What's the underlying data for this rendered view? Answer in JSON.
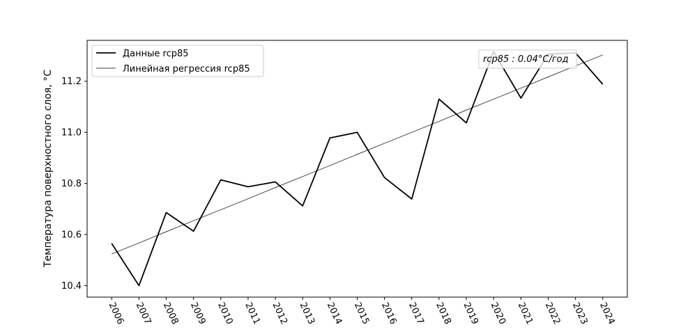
{
  "chart_data": {
    "type": "line",
    "x": [
      2006,
      2007,
      2008,
      2009,
      2010,
      2011,
      2012,
      2013,
      2014,
      2015,
      2016,
      2017,
      2018,
      2019,
      2020,
      2021,
      2022,
      2023,
      2024
    ],
    "x_tick_labels": [
      "2006",
      "2007",
      "2008",
      "2009",
      "2010",
      "2011",
      "2012",
      "2013",
      "2014",
      "2015",
      "2016",
      "2017",
      "2018",
      "2019",
      "2020",
      "2021",
      "2022",
      "2023",
      "2024"
    ],
    "series": [
      {
        "name": "Данные rcp85",
        "values": [
          10.565,
          10.4,
          10.686,
          10.613,
          10.814,
          10.787,
          10.806,
          10.712,
          10.978,
          11.0,
          10.823,
          10.739,
          11.13,
          11.037,
          11.316,
          11.134,
          11.306,
          11.311,
          11.188
        ],
        "color": "#000000",
        "style": "thick"
      },
      {
        "name": "Линейная регрессия rcp85",
        "values": [
          10.524,
          10.567,
          10.611,
          10.654,
          10.697,
          10.74,
          10.784,
          10.827,
          10.87,
          10.914,
          10.957,
          11.0,
          11.043,
          11.087,
          11.13,
          11.173,
          11.217,
          11.26,
          11.303
        ],
        "color": "#000000",
        "style": "thin"
      }
    ],
    "title": "",
    "xlabel": "",
    "ylabel": "Температура поверхностного слоя, °C",
    "y_ticks": [
      10.4,
      10.6,
      10.8,
      11.0,
      11.2
    ],
    "y_tick_labels": [
      "10.4",
      "10.6",
      "10.8",
      "11.0",
      "11.2"
    ],
    "xlim": [
      2005.1,
      2024.9
    ],
    "ylim": [
      10.355,
      11.36
    ],
    "grid": false,
    "legend_position": "upper-left",
    "annotation": "rcp85 : 0.04°C/год"
  }
}
